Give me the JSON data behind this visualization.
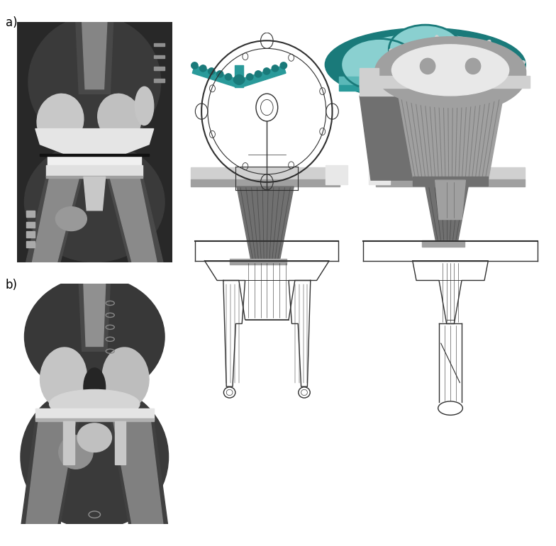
{
  "fig_width": 7.84,
  "fig_height": 7.7,
  "dpi": 100,
  "background_color": "#ffffff",
  "label_a": "a)",
  "label_b": "b)",
  "label_fontsize": 12,
  "teal_dark": "#1a7a7a",
  "teal_mid": "#2a9a9a",
  "teal_light": "#5ab8b8",
  "teal_highlight": "#8ad0d0",
  "gray_xray_dark": "#303030",
  "gray_xray_mid": "#606060",
  "gray_xray_bone": "#b0b0b0",
  "gray_xray_implant": "#e0e0e0",
  "gray_3d_dark": "#707070",
  "gray_3d_mid": "#a0a0a0",
  "gray_3d_light": "#d0d0d0",
  "gray_3d_highlight": "#e8e8e8",
  "line_dark": "#303030",
  "line_mid": "#505050"
}
